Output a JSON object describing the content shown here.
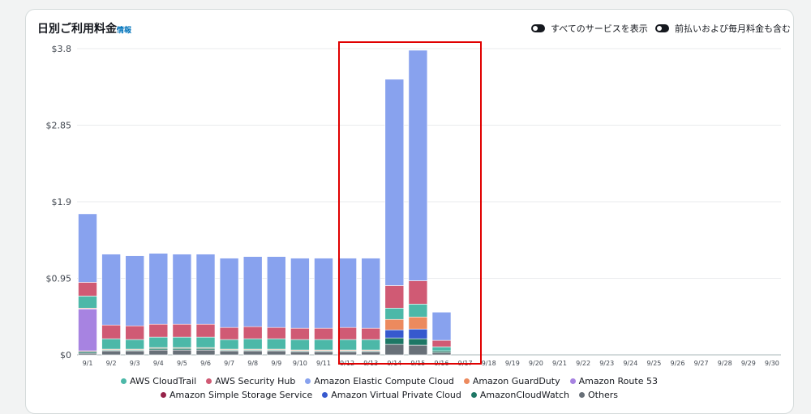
{
  "header": {
    "title": "日別ご利用料金",
    "info_link": "情報",
    "toggle_all_services": "すべてのサービスを表示",
    "toggle_prepaid": "前払いおよび毎月料金も含む"
  },
  "colors": {
    "highlight_box": "#e00000",
    "grid": "#e9ebed",
    "axis_text": "#414750"
  },
  "chart_data": {
    "type": "bar",
    "stacked": true,
    "grid": true,
    "legend_position": "bottom",
    "ylim": [
      0,
      3.8
    ],
    "y_ticks": [
      0,
      0.95,
      1.9,
      2.85,
      3.8
    ],
    "y_tick_labels": [
      "$0",
      "$0.95",
      "$1.9",
      "$2.85",
      "$3.8"
    ],
    "categories": [
      "9/1",
      "9/2",
      "9/3",
      "9/4",
      "9/5",
      "9/6",
      "9/7",
      "9/8",
      "9/9",
      "9/10",
      "9/11",
      "9/12",
      "9/13",
      "9/14",
      "9/15",
      "9/16",
      "9/17",
      "9/18",
      "9/19",
      "9/20",
      "9/21",
      "9/22",
      "9/23",
      "9/24",
      "9/25",
      "9/26",
      "9/27",
      "9/28",
      "9/29",
      "9/30"
    ],
    "series": [
      {
        "name": "Others",
        "color": "#687078",
        "values": [
          0.02,
          0.05,
          0.05,
          0.06,
          0.06,
          0.06,
          0.05,
          0.05,
          0.05,
          0.04,
          0.04,
          0.04,
          0.04,
          0.13,
          0.12,
          0.03,
          0,
          0,
          0,
          0,
          0,
          0,
          0,
          0,
          0,
          0,
          0,
          0,
          0,
          0
        ]
      },
      {
        "name": "AmazonCloudWatch",
        "color": "#1e7765",
        "values": [
          0.02,
          0.01,
          0.01,
          0.02,
          0.02,
          0.02,
          0.01,
          0.01,
          0.01,
          0.01,
          0.01,
          0.01,
          0.01,
          0.08,
          0.08,
          0.02,
          0,
          0,
          0,
          0,
          0,
          0,
          0,
          0,
          0,
          0,
          0,
          0,
          0,
          0
        ]
      },
      {
        "name": "Amazon Virtual Private Cloud",
        "color": "#3759ce",
        "values": [
          0,
          0,
          0,
          0,
          0,
          0,
          0,
          0,
          0,
          0,
          0,
          0,
          0,
          0.1,
          0.12,
          0,
          0,
          0,
          0,
          0,
          0,
          0,
          0,
          0,
          0,
          0,
          0,
          0,
          0,
          0
        ]
      },
      {
        "name": "Amazon Simple Storage Service",
        "color": "#962249",
        "values": [
          0.01,
          0,
          0,
          0,
          0,
          0,
          0,
          0,
          0,
          0,
          0,
          0,
          0,
          0,
          0,
          0,
          0,
          0,
          0,
          0,
          0,
          0,
          0,
          0,
          0,
          0,
          0,
          0,
          0,
          0
        ]
      },
      {
        "name": "Amazon Route 53",
        "color": "#a783e1",
        "values": [
          0.52,
          0,
          0,
          0,
          0,
          0,
          0,
          0,
          0,
          0,
          0,
          0,
          0,
          0,
          0,
          0,
          0,
          0,
          0,
          0,
          0,
          0,
          0,
          0,
          0,
          0,
          0,
          0,
          0,
          0
        ]
      },
      {
        "name": "Amazon GuardDuty",
        "color": "#ec8a5e",
        "values": [
          0.01,
          0.01,
          0.01,
          0.01,
          0.01,
          0.01,
          0.01,
          0.01,
          0.01,
          0.01,
          0.01,
          0.01,
          0.01,
          0.13,
          0.15,
          0,
          0,
          0,
          0,
          0,
          0,
          0,
          0,
          0,
          0,
          0,
          0,
          0,
          0,
          0
        ]
      },
      {
        "name": "AWS CloudTrail",
        "color": "#4cb8a8",
        "values": [
          0.15,
          0.13,
          0.12,
          0.13,
          0.13,
          0.13,
          0.12,
          0.13,
          0.13,
          0.13,
          0.13,
          0.13,
          0.13,
          0.14,
          0.16,
          0.05,
          0,
          0,
          0,
          0,
          0,
          0,
          0,
          0,
          0,
          0,
          0,
          0,
          0,
          0
        ]
      },
      {
        "name": "AWS Security Hub",
        "color": "#d05a74",
        "values": [
          0.17,
          0.17,
          0.17,
          0.16,
          0.16,
          0.16,
          0.15,
          0.15,
          0.14,
          0.14,
          0.14,
          0.15,
          0.14,
          0.28,
          0.29,
          0.08,
          0,
          0,
          0,
          0,
          0,
          0,
          0,
          0,
          0,
          0,
          0,
          0,
          0,
          0
        ]
      },
      {
        "name": "Amazon Elastic Compute Cloud",
        "color": "#88a2ee",
        "values": [
          0.85,
          0.88,
          0.87,
          0.88,
          0.87,
          0.87,
          0.86,
          0.87,
          0.88,
          0.87,
          0.87,
          0.86,
          0.87,
          2.56,
          2.86,
          0.35,
          0,
          0,
          0,
          0,
          0,
          0,
          0,
          0,
          0,
          0,
          0,
          0,
          0,
          0
        ]
      }
    ],
    "legend_order": [
      "AWS CloudTrail",
      "AWS Security Hub",
      "Amazon Elastic Compute Cloud",
      "Amazon GuardDuty",
      "Amazon Route 53",
      "Amazon Simple Storage Service",
      "Amazon Virtual Private Cloud",
      "AmazonCloudWatch",
      "Others"
    ]
  }
}
